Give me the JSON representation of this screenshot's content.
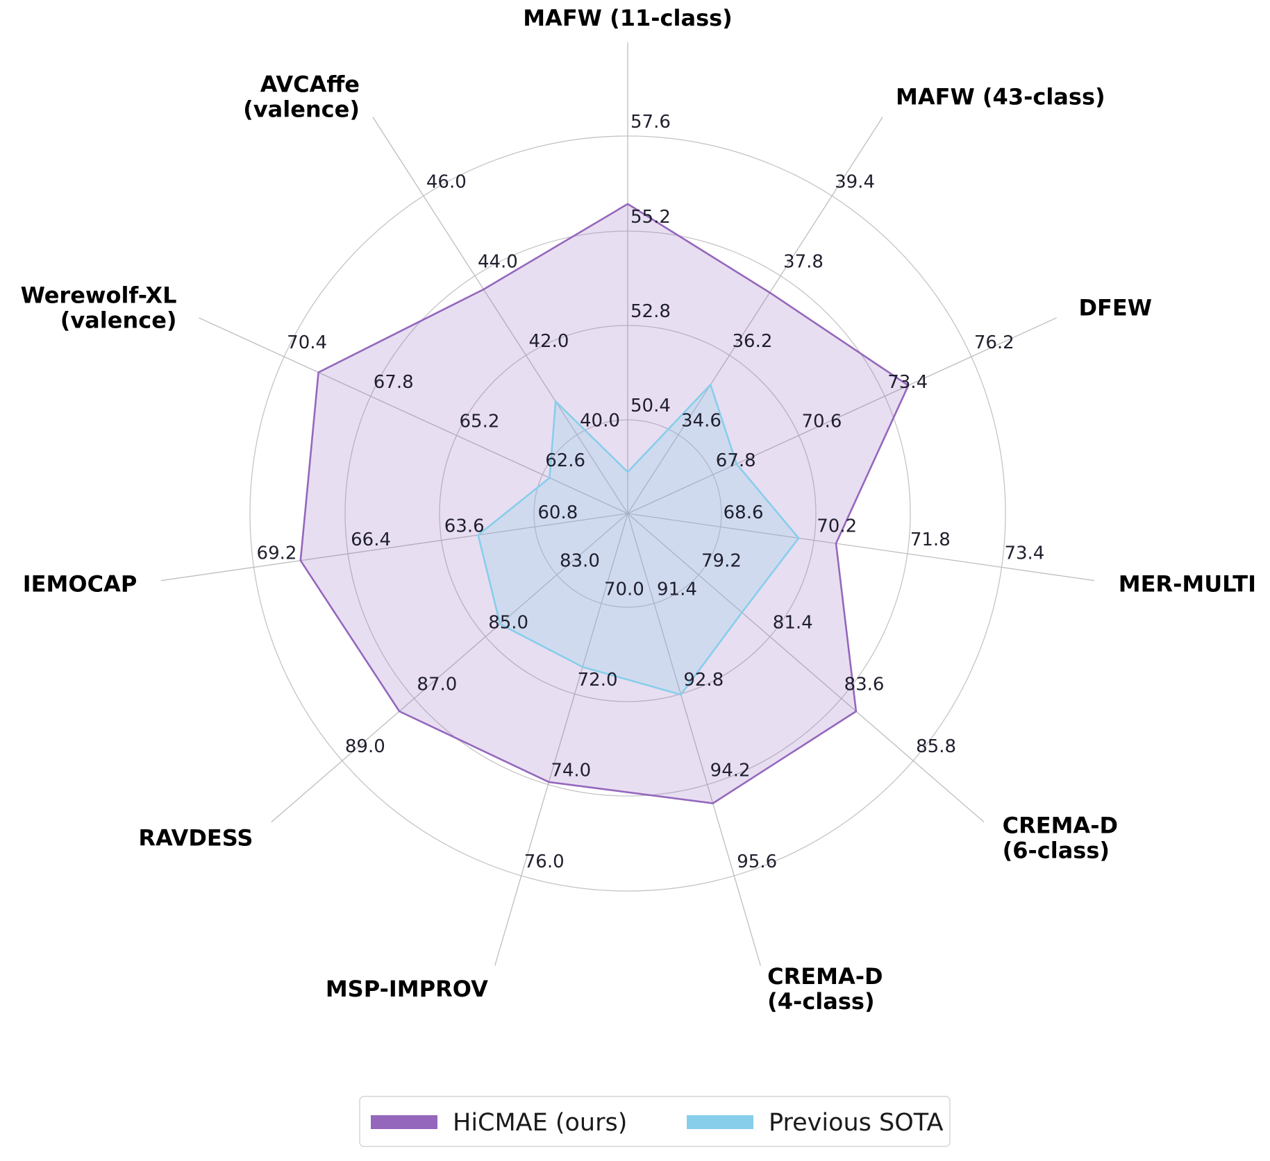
{
  "chart_data": {
    "type": "radar",
    "axes": [
      {
        "label": [
          "MAFW (11-class)"
        ],
        "ticks": [
          "50.4",
          "52.8",
          "55.2",
          "57.6"
        ],
        "min": 48.0,
        "max": 58.0
      },
      {
        "label": [
          "MAFW (43-class)"
        ],
        "ticks": [
          "34.6",
          "36.2",
          "37.8",
          "39.4"
        ],
        "min": 33.0,
        "max": 39.9
      },
      {
        "label": [
          "DFEW"
        ],
        "ticks": [
          "67.8",
          "70.6",
          "73.4",
          "76.2"
        ],
        "min": 65.0,
        "max": 77.0
      },
      {
        "label": [
          "MER-MULTI"
        ],
        "ticks": [
          "68.6",
          "70.2",
          "71.8",
          "73.4"
        ],
        "min": 67.0,
        "max": 74.0
      },
      {
        "label": [
          "CREMA-D",
          "(6-class)"
        ],
        "ticks": [
          "79.2",
          "81.4",
          "83.6",
          "85.8"
        ],
        "min": 77.0,
        "max": 86.5
      },
      {
        "label": [
          "CREMA-D",
          "(4-class)"
        ],
        "ticks": [
          "91.4",
          "92.8",
          "94.2",
          "95.6"
        ],
        "min": 90.0,
        "max": 96.0
      },
      {
        "label": [
          "MSP-IMPROV"
        ],
        "ticks": [
          "70.0",
          "72.0",
          "74.0",
          "76.0"
        ],
        "min": 68.0,
        "max": 76.5
      },
      {
        "label": [
          "RAVDESS"
        ],
        "ticks": [
          "83.0",
          "85.0",
          "87.0",
          "89.0"
        ],
        "min": 81.0,
        "max": 89.5
      },
      {
        "label": [
          "IEMOCAP"
        ],
        "ticks": [
          "60.8",
          "63.6",
          "66.4",
          "69.2"
        ],
        "min": 58.0,
        "max": 70.0
      },
      {
        "label": [
          "Werewolf-XL",
          "(valence)"
        ],
        "ticks": [
          "62.6",
          "65.2",
          "67.8",
          "70.4"
        ],
        "min": 60.0,
        "max": 71.0
      },
      {
        "label": [
          "AVCAffe",
          "(valence)"
        ],
        "ticks": [
          "40.0",
          "42.0",
          "44.0",
          "46.0"
        ],
        "min": 38.0,
        "max": 46.5
      }
    ],
    "series": [
      {
        "name": "HiCMAE (ours)",
        "color": "#9467bd",
        "values": [
          56.2,
          37.8,
          74.8,
          70.9,
          84.6,
          94.8,
          74.3,
          87.8,
          68.5,
          69.9,
          44.0
        ]
      },
      {
        "name": "Previous SOTA",
        "color": "#87ceeb",
        "values": [
          49.1,
          35.8,
          68.8,
          70.2,
          80.8,
          93.0,
          71.6,
          84.8,
          62.8,
          62.5,
          41.0
        ]
      }
    ],
    "grid": true,
    "legend_position": "bottom"
  }
}
